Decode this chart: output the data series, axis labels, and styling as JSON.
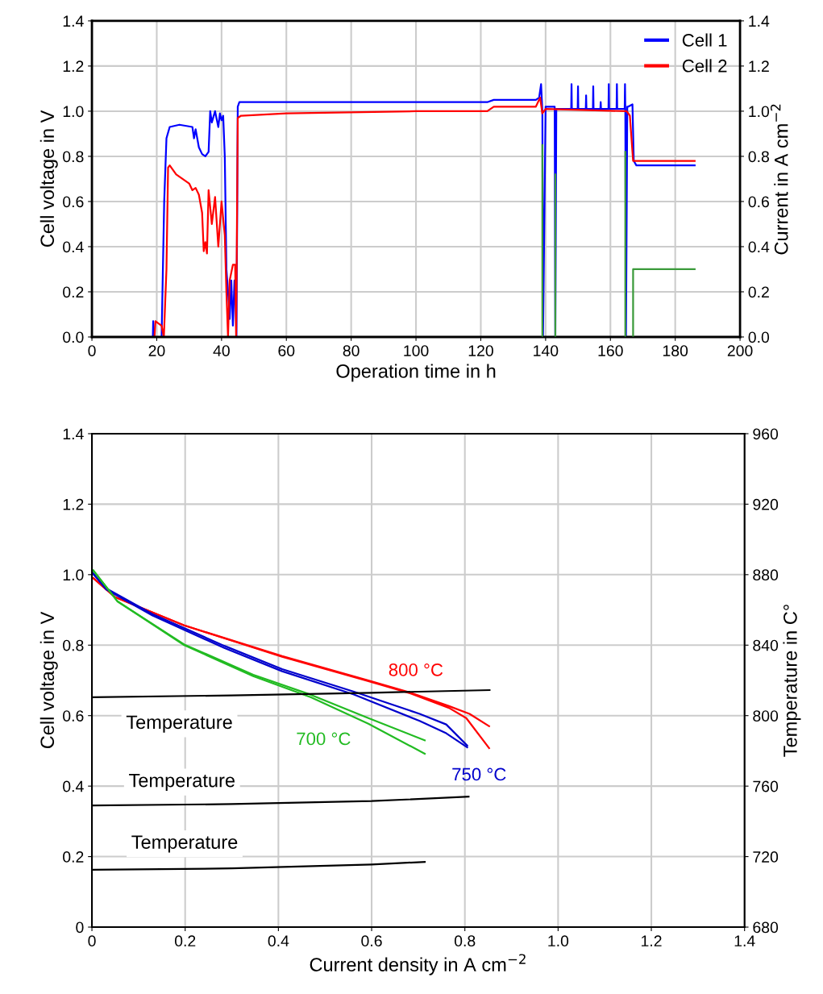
{
  "chart_data": [
    {
      "type": "line",
      "xlabel": "Operation time in h",
      "ylabel": "Cell voltage in V",
      "y2label": "Current in A cm$^{−2}$",
      "xlim": [
        0,
        200
      ],
      "xticks": [
        0,
        20,
        40,
        60,
        80,
        100,
        120,
        140,
        160,
        180,
        200
      ],
      "ylim": [
        0,
        1.4
      ],
      "yticks": [
        {
          "value": 0,
          "label": "0.0"
        },
        {
          "value": 0.2,
          "label": "0.2"
        },
        {
          "value": 0.4,
          "label": "0.4"
        },
        {
          "value": 0.6,
          "label": "0.6"
        },
        {
          "value": 0.8,
          "label": "0.8"
        },
        {
          "value": 1,
          "label": "1.0"
        },
        {
          "value": 1.2,
          "label": "1.2"
        },
        {
          "value": 1.4,
          "label": "1.4"
        }
      ],
      "y2lim": [
        0,
        1.4
      ],
      "y2ticks": [
        {
          "value": 0,
          "label": "0.0"
        },
        {
          "value": 0.2,
          "label": "0.2"
        },
        {
          "value": 0.4,
          "label": "0.4"
        },
        {
          "value": 0.6,
          "label": "0.6"
        },
        {
          "value": 0.8,
          "label": "0.8"
        },
        {
          "value": 1,
          "label": "1.0"
        },
        {
          "value": 1.2,
          "label": "1.2"
        },
        {
          "value": 1.4,
          "label": "1.4"
        }
      ],
      "grid": true,
      "legend": "top right",
      "series": [
        {
          "name": "Cell 1",
          "color": "#0000ff",
          "x": [
            0,
            18.8,
            18.9,
            19.2,
            21.5,
            22.3,
            23,
            24,
            27,
            31,
            31.5,
            32,
            33,
            34,
            35,
            36,
            36.5,
            37,
            38,
            39,
            39.5,
            40,
            40.5,
            41,
            41.5,
            42,
            42.5,
            43,
            43.5,
            44,
            44.3,
            44.6,
            45,
            45.5,
            60,
            122,
            124,
            137,
            138,
            138.6,
            139,
            139.2,
            140,
            142.8,
            143,
            143.3,
            144.5,
            147.9,
            148,
            148.1,
            149.9,
            150,
            150.1,
            152.4,
            152.5,
            152.6,
            154.6,
            154.7,
            154.8,
            156.9,
            157,
            157.1,
            159.4,
            159.5,
            159.6,
            161.9,
            162,
            162.1,
            164.4,
            164.5,
            164.6,
            164.8,
            165.2,
            165.5,
            166.8,
            167.2,
            168,
            186
          ],
          "values": [
            0,
            0,
            0.07,
            0,
            0,
            0.6,
            0.88,
            0.93,
            0.94,
            0.93,
            0.88,
            0.92,
            0.84,
            0.81,
            0.8,
            0.82,
            1.0,
            0.95,
            1.0,
            0.93,
            0.99,
            0.96,
            0.98,
            0.8,
            0.3,
            0.2,
            0.08,
            0.25,
            0.05,
            0.25,
            0.2,
            0,
            1.02,
            1.04,
            1.04,
            1.04,
            1.05,
            1.05,
            1.06,
            1.12,
            1.0,
            0,
            1.02,
            1.02,
            0,
            1.01,
            1.01,
            1.01,
            1.12,
            1.01,
            1.01,
            1.11,
            1.01,
            1.01,
            1.07,
            1.01,
            1.01,
            1.11,
            1.01,
            1.01,
            1.04,
            1.01,
            1.01,
            1.12,
            1.01,
            1.01,
            1.12,
            1.01,
            1.01,
            1.12,
            1.01,
            0,
            1.02,
            1.02,
            1.03,
            0.78,
            0.76,
            0.76
          ]
        },
        {
          "name": "Cell 2",
          "color": "#ff0000",
          "x": [
            0,
            19.3,
            19.6,
            20.5,
            21.5,
            22.2,
            23,
            23.5,
            24,
            26,
            30,
            31,
            32,
            33,
            34,
            34.5,
            35,
            35.5,
            36,
            37,
            38,
            39,
            40,
            41,
            41.5,
            42,
            42.5,
            43.5,
            44.2,
            44.5,
            45,
            46,
            60,
            100,
            122,
            124,
            137,
            138.3,
            139,
            140,
            165,
            166,
            167,
            168,
            186
          ],
          "values": [
            0,
            0,
            0.07,
            0.06,
            0.05,
            0,
            0.3,
            0.75,
            0.76,
            0.72,
            0.68,
            0.65,
            0.66,
            0.63,
            0.55,
            0.38,
            0.42,
            0.37,
            0.65,
            0.5,
            0.62,
            0.4,
            0.6,
            0.45,
            0.2,
            0,
            0.25,
            0.32,
            0.32,
            0,
            0.97,
            0.98,
            0.99,
            1.0,
            1.0,
            1.02,
            1.02,
            1.06,
            0.99,
            1.01,
            1.0,
            0.98,
            0.78,
            0.78,
            0.78
          ]
        },
        {
          "color": "#3a9a3a",
          "axis": "y2",
          "x": [
            139,
            139,
            139.5,
            143,
            143,
            143.5,
            164.6,
            164.6,
            165,
            167,
            167,
            186
          ],
          "values": [
            0,
            0.85,
            null,
            0.72,
            0,
            null,
            0,
            0.82,
            null,
            0,
            0.3,
            0.3
          ]
        }
      ]
    },
    {
      "type": "line",
      "xlabel": "Current density in A cm$^{−2}$",
      "ylabel": "Cell voltage in V",
      "y2label": "Temperature in C°",
      "xlim": [
        0,
        1.4
      ],
      "xticks": [
        0,
        0.2,
        0.4,
        0.6,
        0.8,
        {
          "value": 1,
          "label": "1.0"
        },
        1.2,
        1.4
      ],
      "ylim": [
        0,
        1.4
      ],
      "yticks": [
        0,
        0.2,
        0.4,
        0.6,
        0.8,
        {
          "value": 1,
          "label": "1.0"
        },
        1.2,
        1.4
      ],
      "y2lim": [
        680,
        960
      ],
      "y2ticks": [
        680,
        720,
        760,
        800,
        840,
        880,
        920,
        960
      ],
      "grid": true,
      "series": [
        {
          "name": "800 °C",
          "color": "#ff0000",
          "x": [
            0.003,
            0.05,
            0.198,
            0.408,
            0.593,
            0.686,
            0.766,
            0.81,
            0.852
          ],
          "values": [
            0.99,
            0.936,
            0.856,
            0.769,
            0.7,
            0.664,
            0.627,
            0.605,
            0.57
          ]
        },
        {
          "color": "#ff0000",
          "x": [
            0.003,
            0.05,
            0.198,
            0.408,
            0.593,
            0.686,
            0.766,
            0.803,
            0.852
          ],
          "values": [
            0.99,
            0.936,
            0.856,
            0.767,
            0.698,
            0.662,
            0.622,
            0.593,
            0.508
          ]
        },
        {
          "name": "750 °C",
          "color": "#0000cc",
          "x": [
            0,
            0.031,
            0.13,
            0.284,
            0.408,
            0.562,
            0.703,
            0.76,
            0.805
          ],
          "values": [
            1.007,
            0.961,
            0.888,
            0.798,
            0.732,
            0.668,
            0.605,
            0.575,
            0.515
          ]
        },
        {
          "color": "#0000cc",
          "x": [
            0,
            0.031,
            0.13,
            0.284,
            0.408,
            0.562,
            0.703,
            0.76,
            0.805
          ],
          "values": [
            1.007,
            0.958,
            0.884,
            0.792,
            0.726,
            0.66,
            0.585,
            0.55,
            0.51
          ]
        },
        {
          "name": "700 °C",
          "color": "#22bb22",
          "x": [
            0.003,
            0.038,
            0.055,
            0.198,
            0.346,
            0.47,
            0.593,
            0.714
          ],
          "values": [
            1.012,
            0.953,
            0.924,
            0.802,
            0.716,
            0.659,
            0.593,
            0.53
          ]
        },
        {
          "color": "#22bb22",
          "x": [
            0.003,
            0.038,
            0.055,
            0.198,
            0.346,
            0.47,
            0.593,
            0.714
          ],
          "values": [
            1.012,
            0.953,
            0.924,
            0.8,
            0.712,
            0.652,
            0.577,
            0.492
          ]
        },
        {
          "color": "#000000",
          "axis": "y2",
          "x": [
            0.003,
            0.3,
            0.6,
            0.853
          ],
          "values": [
            810.4,
            811.5,
            813,
            814.5
          ]
        },
        {
          "color": "#000000",
          "axis": "y2",
          "x": [
            0.003,
            0.3,
            0.6,
            0.808
          ],
          "values": [
            749,
            749.8,
            751.5,
            754
          ]
        },
        {
          "color": "#000000",
          "axis": "y2",
          "x": [
            0.003,
            0.3,
            0.6,
            0.714
          ],
          "values": [
            712.5,
            713.3,
            715.5,
            717
          ]
        }
      ],
      "annotations": [
        "Temperature",
        "Temperature",
        "Temperature"
      ]
    }
  ]
}
